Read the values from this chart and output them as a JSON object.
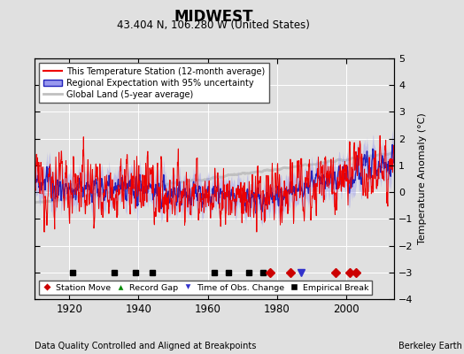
{
  "title": "MIDWEST",
  "subtitle": "43.404 N, 106.280 W (United States)",
  "ylabel": "Temperature Anomaly (°C)",
  "footer_left": "Data Quality Controlled and Aligned at Breakpoints",
  "footer_right": "Berkeley Earth",
  "xlim": [
    1910,
    2014
  ],
  "ylim": [
    -4,
    5
  ],
  "yticks": [
    -4,
    -3,
    -2,
    -1,
    0,
    1,
    2,
    3,
    4,
    5
  ],
  "xticks": [
    1920,
    1940,
    1960,
    1980,
    2000
  ],
  "bg_color": "#e0e0e0",
  "plot_bg_color": "#e0e0e0",
  "station_moves": [
    1978,
    1984,
    1997,
    2001,
    2003
  ],
  "record_gaps": [],
  "obs_changes": [
    1987
  ],
  "empirical_breaks": [
    1921,
    1933,
    1939,
    1944,
    1962,
    1966,
    1972,
    1976
  ],
  "marker_y": -3.0,
  "legend_items": [
    {
      "label": "This Temperature Station (12-month average)",
      "color": "#ff0000",
      "lw": 1.2
    },
    {
      "label": "Regional Expectation with 95% uncertainty",
      "color": "#4444ff",
      "lw": 2.0
    },
    {
      "label": "Global Land (5-year average)",
      "color": "#aaaaaa",
      "lw": 2.5
    }
  ]
}
